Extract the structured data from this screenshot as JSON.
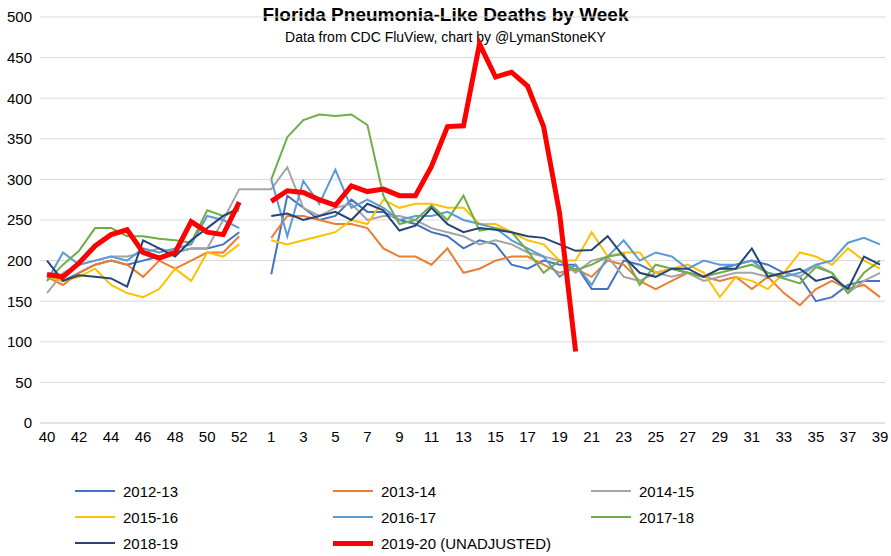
{
  "chart_data": {
    "type": "line",
    "title": "Florida Pneumonia-Like Deaths by Week",
    "subtitle": "Data from CDC FluView, chart by @LymanStoneKY",
    "categories": [
      "40",
      null,
      "42",
      null,
      "44",
      null,
      "46",
      null,
      "48",
      null,
      "50",
      null,
      "52",
      null,
      "1",
      null,
      "3",
      null,
      "5",
      null,
      "7",
      null,
      "9",
      null,
      "11",
      null,
      "13",
      null,
      "15",
      null,
      "17",
      null,
      "19",
      null,
      "21",
      null,
      "23",
      null,
      "25",
      null,
      "27",
      null,
      "29",
      null,
      "31",
      null,
      "33",
      null,
      "35",
      null,
      "37",
      null,
      "39"
    ],
    "ylim": [
      0,
      500
    ],
    "yticks": [
      0,
      50,
      100,
      150,
      200,
      250,
      300,
      350,
      400,
      450,
      500
    ],
    "grid": true,
    "legend": "bottom",
    "series": [
      {
        "name": "2012-13",
        "color": "#4472c4",
        "values": [
          180,
          175,
          185,
          195,
          200,
          195,
          200,
          205,
          210,
          215,
          215,
          220,
          235,
          null,
          183,
          280,
          265,
          250,
          255,
          275,
          260,
          260,
          250,
          245,
          235,
          230,
          215,
          225,
          220,
          195,
          190,
          200,
          195,
          195,
          165,
          165,
          200,
          195,
          185,
          190,
          185,
          180,
          190,
          195,
          200,
          195,
          185,
          180,
          150,
          155,
          170,
          175,
          175
        ]
      },
      {
        "name": "2013-14",
        "color": "#ed7d31",
        "values": [
          180,
          170,
          185,
          195,
          200,
          195,
          180,
          200,
          190,
          200,
          210,
          210,
          230,
          null,
          228,
          255,
          255,
          250,
          245,
          245,
          240,
          215,
          205,
          205,
          195,
          215,
          185,
          190,
          200,
          205,
          205,
          195,
          185,
          190,
          180,
          200,
          195,
          175,
          165,
          175,
          185,
          180,
          175,
          180,
          165,
          180,
          160,
          145,
          165,
          175,
          165,
          170,
          155
        ]
      },
      {
        "name": "2014-15",
        "color": "#a5a5a5",
        "values": [
          160,
          185,
          195,
          200,
          205,
          205,
          210,
          215,
          210,
          215,
          215,
          250,
          288,
          288,
          288,
          315,
          265,
          255,
          265,
          270,
          250,
          255,
          255,
          250,
          240,
          235,
          230,
          220,
          225,
          220,
          210,
          205,
          200,
          185,
          200,
          205,
          180,
          175,
          185,
          180,
          185,
          175,
          180,
          185,
          185,
          180,
          185,
          180,
          195,
          185,
          160,
          175,
          185
        ]
      },
      {
        "name": "2015-16",
        "color": "#ffc000",
        "values": [
          180,
          175,
          180,
          190,
          170,
          160,
          155,
          165,
          190,
          175,
          210,
          205,
          220,
          null,
          225,
          220,
          225,
          230,
          235,
          250,
          245,
          275,
          265,
          270,
          270,
          265,
          265,
          245,
          245,
          235,
          225,
          220,
          200,
          200,
          235,
          205,
          210,
          210,
          185,
          190,
          195,
          185,
          155,
          180,
          175,
          165,
          185,
          210,
          205,
          195,
          215,
          200,
          190
        ]
      },
      {
        "name": "2016-17",
        "color": "#5b9bd5",
        "values": [
          175,
          210,
          195,
          200,
          205,
          200,
          215,
          210,
          215,
          220,
          255,
          250,
          240,
          null,
          300,
          230,
          298,
          270,
          312,
          265,
          275,
          265,
          250,
          255,
          255,
          260,
          250,
          245,
          240,
          225,
          215,
          205,
          180,
          195,
          170,
          205,
          225,
          200,
          210,
          205,
          190,
          200,
          195,
          195,
          200,
          185,
          180,
          185,
          195,
          200,
          222,
          228,
          220
        ]
      },
      {
        "name": "2017-18",
        "color": "#70ad47",
        "values": [
          175,
          195,
          212,
          240,
          240,
          230,
          230,
          227,
          225,
          222,
          262,
          255,
          262,
          null,
          300,
          352,
          373,
          380,
          378,
          380,
          367,
          280,
          245,
          250,
          268,
          250,
          280,
          237,
          240,
          235,
          212,
          185,
          200,
          188,
          195,
          205,
          208,
          170,
          195,
          190,
          185,
          180,
          185,
          190,
          195,
          185,
          178,
          172,
          192,
          185,
          160,
          185,
          200
        ]
      },
      {
        "name": "2018-19",
        "color": "#264478",
        "values": [
          200,
          175,
          182,
          180,
          178,
          168,
          225,
          215,
          205,
          225,
          240,
          255,
          265,
          null,
          255,
          258,
          250,
          255,
          260,
          250,
          270,
          262,
          237,
          243,
          265,
          245,
          235,
          240,
          238,
          235,
          230,
          228,
          220,
          212,
          213,
          230,
          205,
          185,
          180,
          190,
          190,
          180,
          190,
          190,
          215,
          180,
          185,
          190,
          175,
          180,
          165,
          205,
          195
        ]
      },
      {
        "name": "2019-20 (UNADJUSTED)",
        "color": "#ff0000",
        "values": [
          183,
          180,
          197,
          218,
          232,
          238,
          210,
          203,
          210,
          248,
          235,
          232,
          272,
          null,
          273,
          286,
          284,
          275,
          268,
          292,
          285,
          288,
          280,
          280,
          316,
          365,
          366,
          467,
          426,
          432,
          415,
          365,
          258,
          88,
          null,
          null,
          null,
          null,
          null,
          null,
          null,
          null,
          null,
          null,
          null,
          null,
          null,
          null,
          null,
          null,
          null,
          null,
          null
        ]
      }
    ]
  }
}
